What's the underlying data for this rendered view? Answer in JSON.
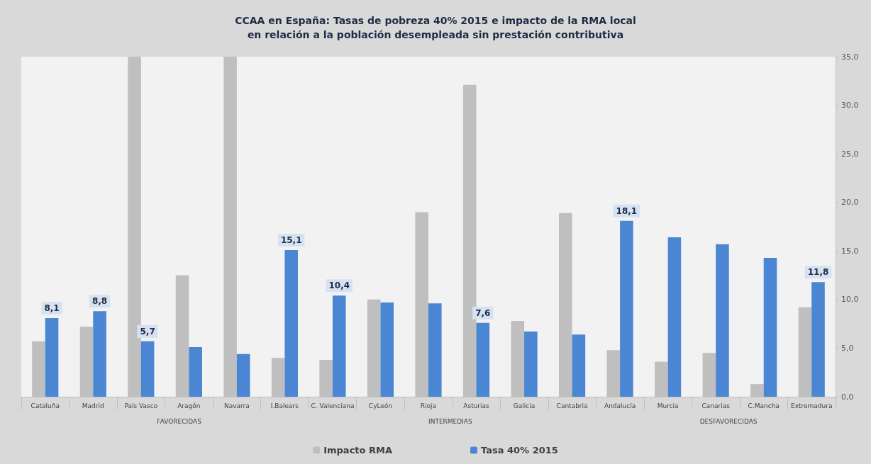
{
  "chart_data": {
    "type": "bar",
    "title": "CCAA en España: Tasas de pobreza 40% 2015 e impacto de la RMA local\nen relación a la población desempleada sin prestación contributiva",
    "categories": [
      "Cataluña",
      "Madrid",
      "País Vasco",
      "Aragón",
      "Navarra",
      "I.Balears",
      "C. Valenciana",
      "CyLeón",
      "Rioja",
      "Asturias",
      "Galicia",
      "Cantabria",
      "Andalucía",
      "Murcia",
      "Canarias",
      "C.Mancha",
      "Extremadura"
    ],
    "series": [
      {
        "name": "Impacto RMA",
        "color": "#bfbfbf",
        "values": [
          5.7,
          7.2,
          35,
          12.5,
          35,
          4.0,
          3.8,
          10.0,
          19.0,
          32.1,
          7.8,
          18.9,
          4.8,
          3.6,
          4.5,
          1.3,
          9.2
        ]
      },
      {
        "name": "Tasa 40% 2015",
        "color": "#4a86d4",
        "values": [
          8.1,
          8.8,
          5.7,
          5.1,
          4.4,
          15.1,
          10.4,
          9.7,
          9.6,
          7.6,
          6.7,
          6.4,
          18.1,
          16.4,
          15.7,
          14.3,
          11.8
        ],
        "value_labels": [
          "8,1",
          "8,8",
          "5,7",
          null,
          null,
          "15,1",
          "10,4",
          null,
          null,
          "7,6",
          null,
          null,
          "18,1",
          null,
          null,
          null,
          "11,8"
        ]
      }
    ],
    "ylim": [
      0,
      35
    ],
    "yticks": [
      {
        "value": 0,
        "label": "0,0"
      },
      {
        "value": 5,
        "label": "5,0"
      },
      {
        "value": 10,
        "label": "10,0"
      },
      {
        "value": 15,
        "label": "15,0"
      },
      {
        "value": 20,
        "label": "20,0"
      },
      {
        "value": 25,
        "label": "25,0"
      },
      {
        "value": 30,
        "label": "30,0"
      },
      {
        "value": 35,
        "label": "35,0"
      }
    ],
    "annotations": [
      "FAVORECIDAS",
      "INTERMEDIAS",
      "DESFAVORECIDAS"
    ],
    "grid": false,
    "legend": "bottom"
  }
}
